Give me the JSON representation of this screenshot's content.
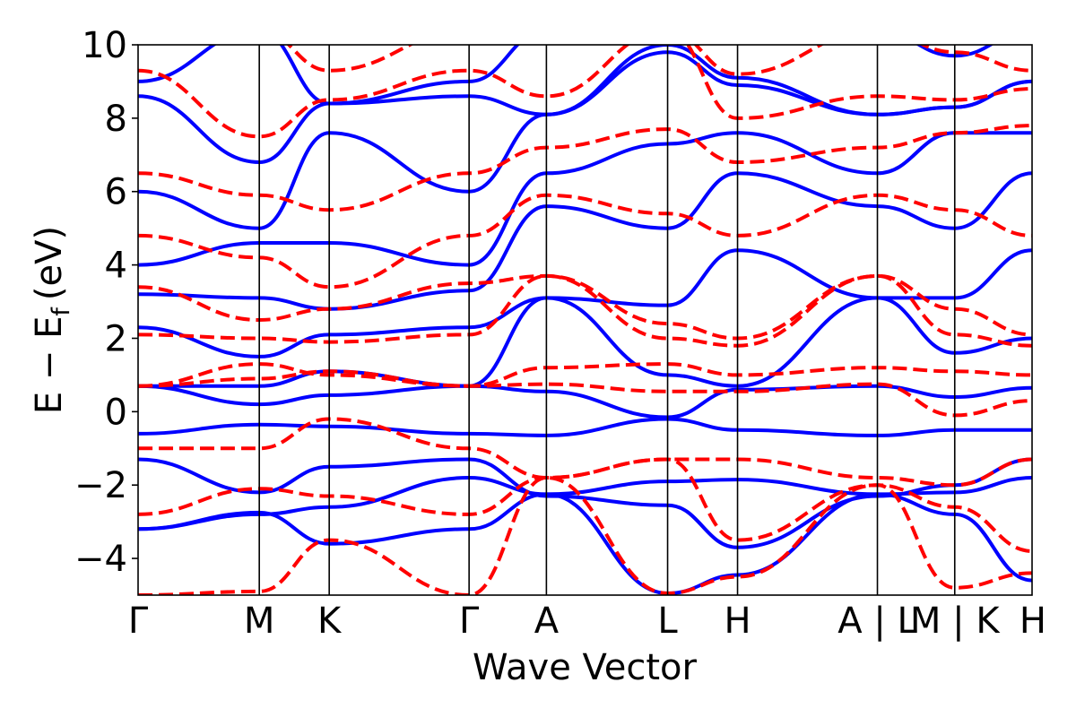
{
  "chart_data": {
    "type": "line",
    "xlabel": "Wave Vector",
    "ylabel_main": "E − E",
    "ylabel_sub": "f",
    "ylabel_unit": "(eV)",
    "ylim": [
      -5,
      10
    ],
    "yticks": [
      -4,
      -2,
      0,
      2,
      4,
      6,
      8,
      10
    ],
    "ytick_labels": [
      "−4",
      "−2",
      "0",
      "2",
      "4",
      "6",
      "8",
      "10"
    ],
    "kpath": [
      {
        "label": "Γ",
        "x": 0.0
      },
      {
        "label": "M",
        "x": 1.0
      },
      {
        "label": "K",
        "x": 1.577
      },
      {
        "label": "Γ",
        "x": 2.731
      },
      {
        "label": "A",
        "x": 3.369
      },
      {
        "label": "L",
        "x": 4.369
      },
      {
        "label": "H",
        "x": 4.946
      },
      {
        "label": "A | L",
        "x": 6.1
      },
      {
        "label": "M | K",
        "x": 6.738
      },
      {
        "label": "H",
        "x": 7.376
      }
    ],
    "grid": false,
    "series": [
      {
        "name": "",
        "color": "#0000ff",
        "style": "solid",
        "bands": [
          [
            [
              0,
              -3.2
            ],
            [
              1,
              -2.75
            ],
            [
              1.577,
              -3.6
            ],
            [
              2.731,
              -3.2
            ],
            [
              3.369,
              -2.25
            ],
            [
              4.369,
              -4.95
            ],
            [
              4.946,
              -4.45
            ],
            [
              6.1,
              -2.25
            ],
            [
              6.738,
              -2.8
            ],
            [
              7.376,
              -4.6
            ]
          ],
          [
            [
              0,
              -3.2
            ],
            [
              1,
              -2.8
            ],
            [
              1.577,
              -2.6
            ],
            [
              2.731,
              -1.8
            ],
            [
              3.369,
              -2.25
            ],
            [
              4.369,
              -1.9
            ],
            [
              4.946,
              -1.85
            ],
            [
              6.1,
              -2.25
            ],
            [
              6.738,
              -2.2
            ],
            [
              7.376,
              -1.8
            ]
          ],
          [
            [
              0,
              -1.3
            ],
            [
              1,
              -2.2
            ],
            [
              1.577,
              -1.5
            ],
            [
              2.731,
              -1.3
            ],
            [
              3.369,
              -2.3
            ],
            [
              4.369,
              -2.55
            ],
            [
              4.946,
              -3.7
            ],
            [
              6.1,
              -2.3
            ],
            [
              6.738,
              -2.0
            ],
            [
              7.376,
              -1.3
            ]
          ],
          [
            [
              0,
              -0.6
            ],
            [
              1,
              -0.35
            ],
            [
              1.577,
              -0.4
            ],
            [
              2.731,
              -0.6
            ],
            [
              3.369,
              -0.65
            ],
            [
              4.369,
              -0.2
            ],
            [
              4.946,
              -0.5
            ],
            [
              6.1,
              -0.65
            ],
            [
              6.738,
              -0.5
            ],
            [
              7.376,
              -0.5
            ]
          ],
          [
            [
              0,
              0.7
            ],
            [
              1,
              0.2
            ],
            [
              1.577,
              0.45
            ],
            [
              2.731,
              0.7
            ],
            [
              3.369,
              0.55
            ],
            [
              4.369,
              -0.15
            ],
            [
              4.946,
              0.6
            ],
            [
              6.1,
              0.7
            ],
            [
              6.738,
              0.4
            ],
            [
              7.376,
              0.65
            ]
          ],
          [
            [
              0,
              0.7
            ],
            [
              1,
              0.7
            ],
            [
              1.577,
              1.1
            ],
            [
              2.731,
              0.7
            ],
            [
              3.369,
              3.1
            ],
            [
              4.369,
              2.9
            ],
            [
              4.946,
              4.4
            ],
            [
              6.1,
              3.1
            ],
            [
              6.738,
              3.1
            ],
            [
              7.376,
              4.4
            ]
          ],
          [
            [
              0,
              2.3
            ],
            [
              1,
              1.5
            ],
            [
              1.577,
              2.1
            ],
            [
              2.731,
              2.3
            ],
            [
              3.369,
              3.1
            ],
            [
              4.369,
              1.0
            ],
            [
              4.946,
              0.7
            ],
            [
              6.1,
              3.1
            ],
            [
              6.738,
              1.6
            ],
            [
              7.376,
              2.0
            ]
          ],
          [
            [
              0,
              3.2
            ],
            [
              1,
              3.1
            ],
            [
              1.577,
              2.8
            ],
            [
              2.731,
              3.3
            ],
            [
              3.369,
              5.6
            ],
            [
              4.369,
              5.0
            ],
            [
              4.946,
              6.5
            ],
            [
              6.1,
              5.6
            ],
            [
              6.738,
              5.0
            ],
            [
              7.376,
              6.5
            ]
          ],
          [
            [
              0,
              4.0
            ],
            [
              1,
              4.6
            ],
            [
              1.577,
              4.6
            ],
            [
              2.731,
              4.0
            ],
            [
              3.369,
              6.5
            ],
            [
              4.369,
              7.3
            ],
            [
              4.946,
              7.6
            ],
            [
              6.1,
              6.5
            ],
            [
              6.738,
              7.6
            ],
            [
              7.376,
              7.6
            ]
          ],
          [
            [
              0,
              6.0
            ],
            [
              1,
              5.0
            ],
            [
              1.577,
              7.6
            ],
            [
              2.731,
              6.0
            ],
            [
              3.369,
              8.1
            ],
            [
              4.369,
              9.8
            ],
            [
              4.946,
              8.9
            ],
            [
              6.1,
              8.1
            ],
            [
              6.738,
              8.3
            ],
            [
              7.376,
              9.0
            ]
          ],
          [
            [
              0,
              8.6
            ],
            [
              1,
              6.8
            ],
            [
              1.577,
              8.4
            ],
            [
              2.731,
              8.6
            ],
            [
              3.369,
              8.1
            ],
            [
              4.369,
              10.0
            ],
            [
              4.946,
              9.1
            ],
            [
              6.1,
              8.1
            ],
            [
              6.738,
              8.3
            ],
            [
              7.376,
              9.0
            ]
          ],
          [
            [
              0,
              9.0
            ],
            [
              1,
              10.4
            ],
            [
              1.577,
              8.4
            ],
            [
              2.731,
              9.0
            ],
            [
              3.369,
              10.4
            ],
            [
              4.369,
              10.4
            ],
            [
              4.946,
              10.4
            ],
            [
              6.1,
              10.4
            ],
            [
              6.738,
              9.7
            ],
            [
              7.376,
              10.4
            ]
          ]
        ]
      },
      {
        "name": "",
        "color": "#ff0000",
        "style": "dashed",
        "bands": [
          [
            [
              0,
              -5.0
            ],
            [
              1,
              -4.9
            ],
            [
              1.577,
              -3.5
            ],
            [
              2.731,
              -5.0
            ],
            [
              3.369,
              -1.8
            ],
            [
              4.369,
              -4.95
            ],
            [
              4.946,
              -4.5
            ],
            [
              6.1,
              -2.0
            ],
            [
              6.738,
              -4.8
            ],
            [
              7.376,
              -4.4
            ]
          ],
          [
            [
              0,
              -2.8
            ],
            [
              1,
              -2.1
            ],
            [
              1.577,
              -2.3
            ],
            [
              2.731,
              -2.8
            ],
            [
              3.369,
              -1.8
            ],
            [
              4.369,
              -1.3
            ],
            [
              4.946,
              -3.5
            ],
            [
              6.1,
              -2.0
            ],
            [
              6.738,
              -2.6
            ],
            [
              7.376,
              -3.8
            ]
          ],
          [
            [
              0,
              -1.0
            ],
            [
              1,
              -1.0
            ],
            [
              1.577,
              -0.2
            ],
            [
              2.731,
              -1.0
            ],
            [
              3.369,
              -1.8
            ],
            [
              4.369,
              -1.3
            ],
            [
              4.946,
              -1.3
            ],
            [
              6.1,
              -1.8
            ],
            [
              6.738,
              -2.0
            ],
            [
              7.376,
              -1.3
            ]
          ],
          [
            [
              0,
              0.7
            ],
            [
              1,
              0.9
            ],
            [
              1.577,
              1.1
            ],
            [
              2.731,
              0.7
            ],
            [
              3.369,
              0.75
            ],
            [
              4.369,
              0.55
            ],
            [
              4.946,
              0.55
            ],
            [
              6.1,
              0.75
            ],
            [
              6.738,
              -0.1
            ],
            [
              7.376,
              0.3
            ]
          ],
          [
            [
              0,
              0.7
            ],
            [
              1,
              1.3
            ],
            [
              1.577,
              1.0
            ],
            [
              2.731,
              0.7
            ],
            [
              3.369,
              1.2
            ],
            [
              4.369,
              1.3
            ],
            [
              4.946,
              1.0
            ],
            [
              6.1,
              1.2
            ],
            [
              6.738,
              1.1
            ],
            [
              7.376,
              1.0
            ]
          ],
          [
            [
              0,
              2.1
            ],
            [
              1,
              2.0
            ],
            [
              1.577,
              1.9
            ],
            [
              2.731,
              2.1
            ],
            [
              3.369,
              3.7
            ],
            [
              4.369,
              2.0
            ],
            [
              4.946,
              1.8
            ],
            [
              6.1,
              3.7
            ],
            [
              6.738,
              2.1
            ],
            [
              7.376,
              1.8
            ]
          ],
          [
            [
              0,
              3.4
            ],
            [
              1,
              2.5
            ],
            [
              1.577,
              2.8
            ],
            [
              2.731,
              3.5
            ],
            [
              3.369,
              3.7
            ],
            [
              4.369,
              2.4
            ],
            [
              4.946,
              2.0
            ],
            [
              6.1,
              3.7
            ],
            [
              6.738,
              2.8
            ],
            [
              7.376,
              2.1
            ]
          ],
          [
            [
              0,
              4.8
            ],
            [
              1,
              4.2
            ],
            [
              1.577,
              3.4
            ],
            [
              2.731,
              4.8
            ],
            [
              3.369,
              5.9
            ],
            [
              4.369,
              5.4
            ],
            [
              4.946,
              4.8
            ],
            [
              6.1,
              5.9
            ],
            [
              6.738,
              5.5
            ],
            [
              7.376,
              4.8
            ]
          ],
          [
            [
              0,
              6.5
            ],
            [
              1,
              5.9
            ],
            [
              1.577,
              5.5
            ],
            [
              2.731,
              6.5
            ],
            [
              3.369,
              7.2
            ],
            [
              4.369,
              7.7
            ],
            [
              4.946,
              6.8
            ],
            [
              6.1,
              7.2
            ],
            [
              6.738,
              7.6
            ],
            [
              7.376,
              7.8
            ]
          ],
          [
            [
              0,
              9.3
            ],
            [
              1,
              7.5
            ],
            [
              1.577,
              8.5
            ],
            [
              2.731,
              9.3
            ],
            [
              3.369,
              8.6
            ],
            [
              4.369,
              10.4
            ],
            [
              4.946,
              8.0
            ],
            [
              6.1,
              8.6
            ],
            [
              6.738,
              8.5
            ],
            [
              7.376,
              8.8
            ]
          ],
          [
            [
              0,
              10.4
            ],
            [
              1,
              10.4
            ],
            [
              1.577,
              9.3
            ],
            [
              2.731,
              10.4
            ],
            [
              3.369,
              10.4
            ],
            [
              4.369,
              10.4
            ],
            [
              4.946,
              9.2
            ],
            [
              6.1,
              10.4
            ],
            [
              6.738,
              9.8
            ],
            [
              7.376,
              9.3
            ]
          ]
        ]
      }
    ]
  }
}
